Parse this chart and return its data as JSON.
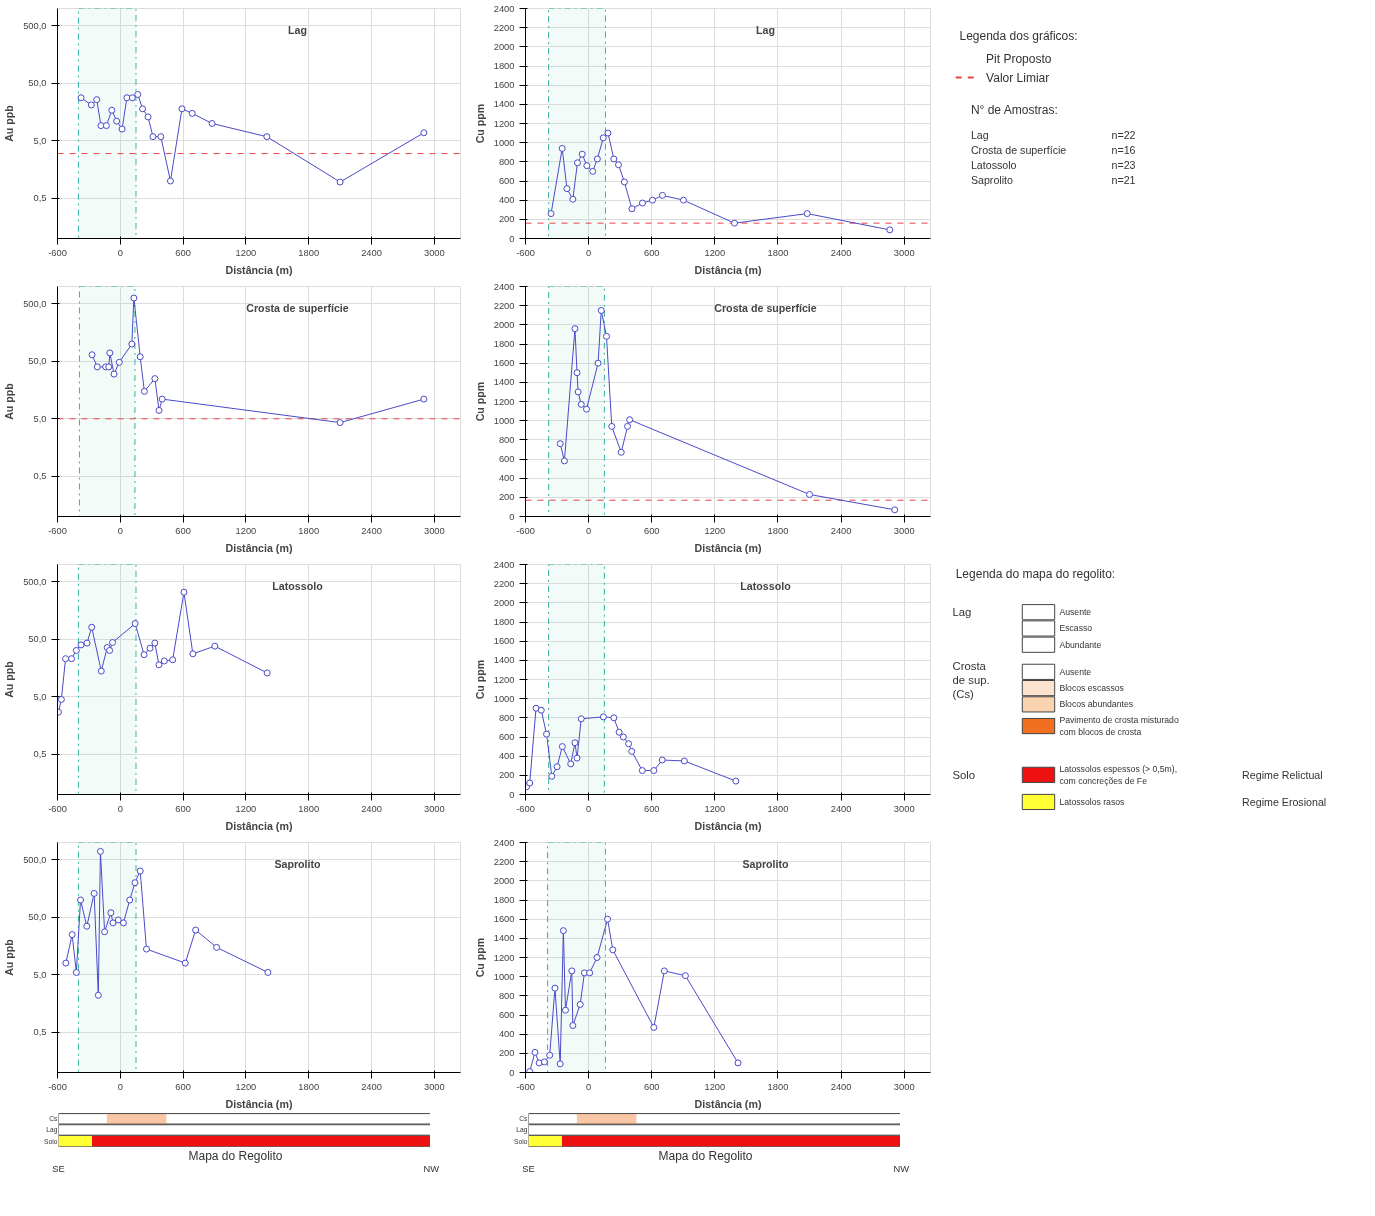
{
  "chart_data": [
    {
      "type": "line",
      "title": "Lag",
      "xlabel": "Distância (m)",
      "ylabel": "Au ppb",
      "log": true,
      "grid": true,
      "marker": "circle",
      "line_style": "solid",
      "xlim": [
        -600,
        3250
      ],
      "ylim": [
        0.1,
        1000
      ],
      "xticks": [
        -600,
        0,
        600,
        1200,
        1800,
        2400,
        3000
      ],
      "yticks": [
        {
          "value": 0.5,
          "label": "0,5"
        },
        {
          "value": 5,
          "label": "5,0"
        },
        {
          "value": 50,
          "label": "50,0"
        },
        {
          "value": 500,
          "label": "500,0"
        }
      ],
      "x": [
        -375,
        -277,
        -225,
        -185,
        -133,
        -81,
        -35,
        17,
        63,
        115,
        167,
        213,
        265,
        312,
        387,
        479,
        589,
        687,
        877,
        1400,
        2100,
        2900
      ],
      "series": [
        {
          "color": "#4a4ac8",
          "values": [
            28,
            21,
            26,
            9.2,
            9.2,
            17,
            11,
            8,
            28,
            28,
            32,
            18,
            13,
            5.9,
            5.9,
            1.0,
            18,
            15,
            10,
            5.9,
            0.96,
            6.9
          ]
        }
      ],
      "bands": [
        {
          "axis": "x",
          "from": -400,
          "to": 150,
          "color": "#33b5a0"
        }
      ],
      "ref_lines": [
        {
          "axis": "y",
          "value": 3,
          "color": "#e8454a",
          "line_style": "dashed"
        }
      ]
    },
    {
      "type": "line",
      "title": "Lag",
      "xlabel": "Distância (m)",
      "ylabel": "Cu ppm",
      "grid": true,
      "marker": "circle",
      "line_style": "solid",
      "xlim": [
        -600,
        3250
      ],
      "ylim": [
        0,
        2400
      ],
      "xticks": [
        -600,
        0,
        600,
        1200,
        1800,
        2400,
        3000
      ],
      "yticks": [
        0,
        200,
        400,
        600,
        800,
        1000,
        1200,
        1400,
        1600,
        1800,
        2000,
        2200,
        2400
      ],
      "x": [
        -357,
        -251,
        -206,
        -150,
        -106,
        -61,
        -17,
        39,
        83,
        139,
        184,
        240,
        284,
        340,
        412,
        512,
        607,
        702,
        902,
        1387,
        2078,
        2863
      ],
      "series": [
        {
          "color": "#4a4ac8",
          "values": [
            260,
            940,
            520,
            410,
            790,
            880,
            760,
            700,
            830,
            1050,
            1100,
            830,
            770,
            590,
            310,
            370,
            400,
            450,
            400,
            160,
            260,
            90
          ]
        }
      ],
      "bands": [
        {
          "axis": "x",
          "from": -380,
          "to": 160,
          "color": "#33b5a0"
        }
      ],
      "ref_lines": [
        {
          "axis": "y",
          "value": 160,
          "color": "#e8454a",
          "line_style": "dashed"
        }
      ]
    },
    {
      "type": "other",
      "title": "Legenda dos gráficos:",
      "annotations": [
        "Pit Proposto",
        "Valor Limiar",
        "N° de Amostras:",
        "Lag",
        "n=22",
        "Crosta de superfície",
        "n=16",
        "Latossolo",
        "n=23",
        "Saprolito",
        "n=21"
      ],
      "colors": [
        "#33b5a0",
        "#e8454a"
      ]
    },
    {
      "type": "line",
      "title": "Crosta de superfície",
      "xlabel": "Distância (m)",
      "ylabel": "Au ppb",
      "log": true,
      "grid": true,
      "marker": "circle",
      "line_style": "solid",
      "xlim": [
        -600,
        3250
      ],
      "ylim": [
        0.1,
        1000
      ],
      "xticks": [
        -600,
        0,
        600,
        1200,
        1800,
        2400,
        3000
      ],
      "yticks": [
        {
          "value": 0.5,
          "label": "0,5"
        },
        {
          "value": 5,
          "label": "5,0"
        },
        {
          "value": 50,
          "label": "50,0"
        },
        {
          "value": 500,
          "label": "500,0"
        }
      ],
      "x": [
        -270,
        -220,
        -140,
        -110,
        -100,
        -60,
        -10,
        110,
        130,
        190,
        230,
        330,
        370,
        400,
        2100,
        2900
      ],
      "series": [
        {
          "color": "#4a4ac8",
          "values": [
            65,
            40,
            40,
            40,
            70,
            30,
            48,
            100,
            630,
            60,
            15,
            25,
            7,
            11,
            4.3,
            11
          ]
        }
      ],
      "bands": [
        {
          "axis": "x",
          "from": -390,
          "to": 140,
          "color": "#33b5a0"
        }
      ],
      "ref_lines": [
        {
          "axis": "y",
          "value": 5,
          "color": "#e8454a",
          "line_style": "dashed"
        }
      ]
    },
    {
      "type": "line",
      "title": "Crosta de superfície",
      "xlabel": "Distância (m)",
      "ylabel": "Cu ppm",
      "grid": true,
      "marker": "circle",
      "line_style": "solid",
      "xlim": [
        -600,
        3250
      ],
      "ylim": [
        0,
        2400
      ],
      "xticks": [
        -600,
        0,
        600,
        1200,
        1800,
        2400,
        3000
      ],
      "yticks": [
        0,
        200,
        400,
        600,
        800,
        1000,
        1200,
        1400,
        1600,
        1800,
        2000,
        2200,
        2400
      ],
      "x": [
        -270,
        -230,
        -130,
        -110,
        -100,
        -70,
        -20,
        90,
        120,
        170,
        220,
        310,
        370,
        390,
        2100,
        2910
      ],
      "series": [
        {
          "color": "#4a4ac8",
          "values": [
            760,
            580,
            1960,
            1500,
            1300,
            1170,
            1120,
            1600,
            2150,
            1880,
            940,
            670,
            940,
            1010,
            230,
            70
          ]
        }
      ],
      "bands": [
        {
          "axis": "x",
          "from": -380,
          "to": 150,
          "color": "#33b5a0"
        }
      ],
      "ref_lines": [
        {
          "axis": "y",
          "value": 170,
          "color": "#e8454a",
          "line_style": "dashed"
        }
      ]
    },
    {
      "type": "line",
      "title": "Latossolo",
      "xlabel": "Distância (m)",
      "ylabel": "Au ppb",
      "log": true,
      "grid": true,
      "marker": "circle",
      "line_style": "solid",
      "xlim": [
        -600,
        3250
      ],
      "ylim": [
        0.1,
        1000
      ],
      "xticks": [
        -600,
        0,
        600,
        1200,
        1800,
        2400,
        3000
      ],
      "yticks": [
        {
          "value": 0.5,
          "label": "0,5"
        },
        {
          "value": 5,
          "label": "5,0"
        },
        {
          "value": 50,
          "label": "50,0"
        },
        {
          "value": 500,
          "label": "500,0"
        }
      ],
      "x": [
        -591,
        -563,
        -523,
        -466,
        -420,
        -375,
        -318,
        -273,
        -182,
        -125,
        -102,
        -74,
        142,
        227,
        284,
        330,
        369,
        420,
        500,
        608,
        693,
        903,
        1403
      ],
      "series": [
        {
          "color": "#4a4ac8",
          "values": [
            2.7,
            4.5,
            23,
            23,
            32,
            40,
            43,
            81,
            14,
            36,
            32,
            44,
            94,
            27,
            35,
            43,
            18,
            21,
            22,
            330,
            28,
            38,
            13
          ]
        }
      ],
      "bands": [
        {
          "axis": "x",
          "from": -400,
          "to": 150,
          "color": "#33b5a0"
        }
      ]
    },
    {
      "type": "line",
      "title": "Latossolo",
      "xlabel": "Distância (m)",
      "ylabel": "Cu ppm",
      "grid": true,
      "marker": "circle",
      "line_style": "solid",
      "xlim": [
        -600,
        3250
      ],
      "ylim": [
        0,
        2400
      ],
      "xticks": [
        -600,
        0,
        600,
        1200,
        1800,
        2400,
        3000
      ],
      "yticks": [
        0,
        200,
        400,
        600,
        800,
        1000,
        1200,
        1400,
        1600,
        1800,
        2000,
        2200,
        2400
      ],
      "x": [
        -590,
        -560,
        -500,
        -450,
        -400,
        -350,
        -300,
        -250,
        -170,
        -130,
        -110,
        -70,
        140,
        240,
        290,
        330,
        380,
        410,
        510,
        620,
        700,
        910,
        1400
      ],
      "series": [
        {
          "color": "#4a4ac8",
          "values": [
            80,
            120,
            900,
            880,
            630,
            190,
            290,
            500,
            320,
            540,
            380,
            790,
            810,
            800,
            650,
            600,
            530,
            450,
            250,
            250,
            360,
            350,
            140
          ]
        }
      ],
      "bands": [
        {
          "axis": "x",
          "from": -380,
          "to": 150,
          "color": "#33b5a0"
        }
      ]
    },
    {
      "type": "other",
      "title": "Legenda do mapa do regolito:",
      "annotations": [
        "Lag",
        "Ausente",
        "Escasso",
        "Abundante",
        "Crosta\nde sup.\n(Cs)",
        "Ausente",
        "Blocos escassos",
        "Blocos abundantes",
        "Pavimento de crosta misturado\ncom blocos de crosta",
        "Solo",
        "Latossolos espessos (> 0,5m),\ncom concreções de Fe",
        "Latossolos rasos",
        "Regime Relictual",
        "Regime Erosional"
      ],
      "colors": [
        "#ffffff",
        "#ffffff",
        "#ffffff",
        "#ffffff",
        "#fbe3cf",
        "#fbd2b0",
        "#f07020",
        "#ee1111",
        "#ffff33"
      ]
    },
    {
      "type": "line",
      "title": "Saprolito",
      "xlabel": "Distância (m)",
      "ylabel": "Au ppb",
      "log": true,
      "grid": true,
      "marker": "circle",
      "line_style": "solid",
      "xlim": [
        -600,
        3250
      ],
      "ylim": [
        0.1,
        1000
      ],
      "xticks": [
        -600,
        0,
        600,
        1200,
        1800,
        2400,
        3000
      ],
      "yticks": [
        {
          "value": 0.5,
          "label": "0,5"
        },
        {
          "value": 5,
          "label": "5,0"
        },
        {
          "value": 50,
          "label": "50,0"
        },
        {
          "value": 500,
          "label": "500,0"
        }
      ],
      "x": [
        -520,
        -460,
        -420,
        -380,
        -320,
        -250,
        -210,
        -190,
        -150,
        -90,
        -70,
        -20,
        30,
        90,
        140,
        190,
        250,
        620,
        720,
        920,
        1410
      ],
      "series": [
        {
          "color": "#4a4ac8",
          "values": [
            8,
            25,
            5.5,
            100,
            35,
            130,
            2.2,
            700,
            28,
            60,
            40,
            45,
            40,
            100,
            200,
            320,
            14,
            8,
            30,
            15,
            5.5
          ]
        }
      ],
      "bands": [
        {
          "axis": "x",
          "from": -400,
          "to": 150,
          "color": "#33b5a0"
        }
      ]
    },
    {
      "type": "line",
      "title": "Saprolito",
      "xlabel": "Distância (m)",
      "ylabel": "Cu ppm",
      "grid": true,
      "marker": "circle",
      "line_style": "solid",
      "xlim": [
        -600,
        3250
      ],
      "ylim": [
        0,
        2400
      ],
      "xticks": [
        -600,
        0,
        600,
        1200,
        1800,
        2400,
        3000
      ],
      "yticks": [
        0,
        200,
        400,
        600,
        800,
        1000,
        1200,
        1400,
        1600,
        1800,
        2000,
        2200,
        2400
      ],
      "x": [
        -560,
        -510,
        -470,
        -420,
        -370,
        -320,
        -270,
        -240,
        -220,
        -160,
        -150,
        -80,
        -40,
        10,
        80,
        180,
        230,
        620,
        720,
        920,
        1420
      ],
      "series": [
        {
          "color": "#4a4ac8",
          "values": [
            10,
            210,
            100,
            110,
            180,
            880,
            90,
            1480,
            650,
            1060,
            490,
            710,
            1040,
            1040,
            1200,
            1600,
            1280,
            470,
            1060,
            1010,
            100
          ]
        }
      ],
      "bands": [
        {
          "axis": "x",
          "from": -390,
          "to": 160,
          "color": "#33b5a0"
        }
      ]
    },
    {
      "type": "other",
      "annotations": [
        "Cs",
        "Lag",
        "Solo",
        "Mapa do Regolito",
        "SE",
        "NW"
      ],
      "colors": [
        "#ffff33",
        "#ee1111",
        "#f07020"
      ]
    },
    {
      "type": "other",
      "annotations": [
        "Cs",
        "Lag",
        "Solo",
        "Mapa do Regolito",
        "SE",
        "NW"
      ],
      "colors": [
        "#ffff33",
        "#ee1111",
        "#f07020"
      ]
    }
  ]
}
